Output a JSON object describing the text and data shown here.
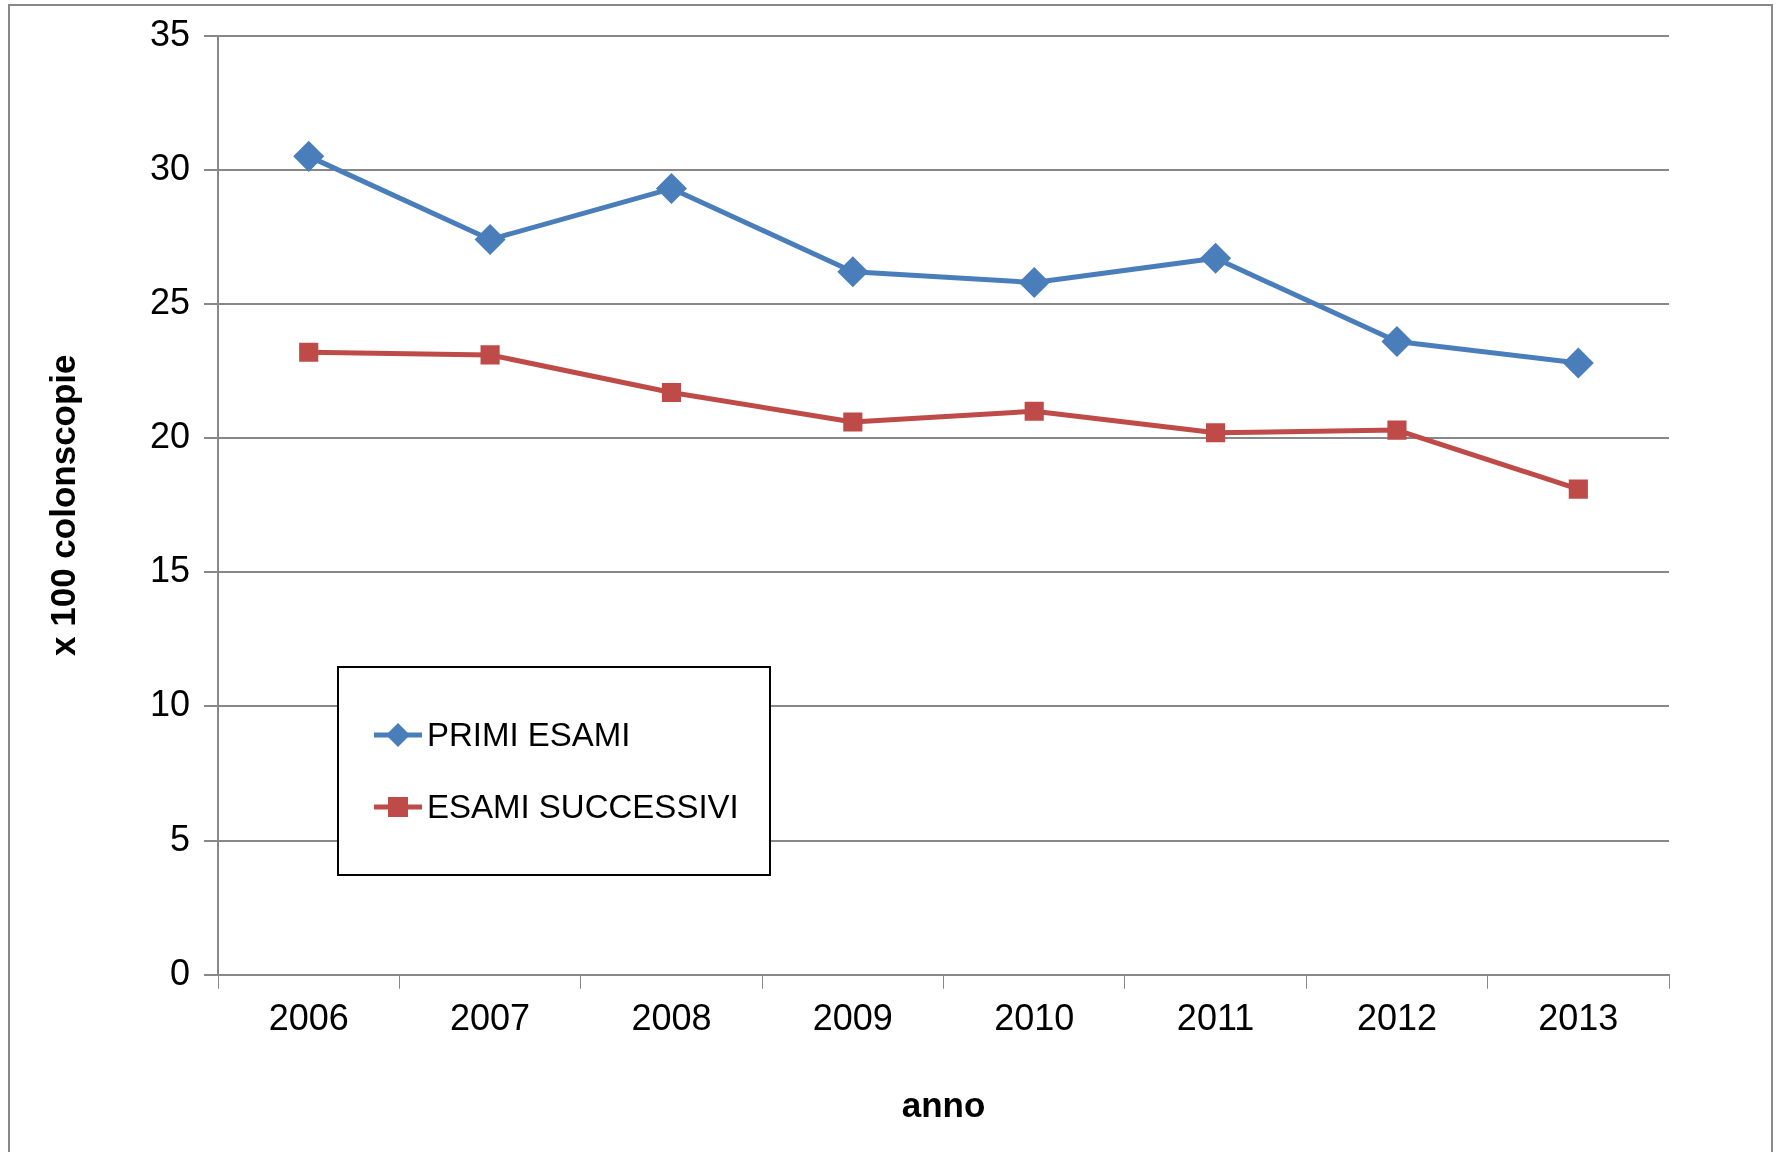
{
  "chart_data": {
    "type": "line",
    "xlabel": "anno",
    "ylabel": "x 100 colonscopie",
    "categories": [
      "2006",
      "2007",
      "2008",
      "2009",
      "2010",
      "2011",
      "2012",
      "2013"
    ],
    "series": [
      {
        "name": "PRIMI ESAMI",
        "color": "#4a7ebb",
        "marker": "diamond",
        "values": [
          30.5,
          27.4,
          29.3,
          26.2,
          25.8,
          26.7,
          23.6,
          22.8
        ]
      },
      {
        "name": "ESAMI SUCCESSIVI",
        "color": "#be4b48",
        "marker": "square",
        "values": [
          23.2,
          23.1,
          21.7,
          20.6,
          21.0,
          20.2,
          20.3,
          18.1
        ]
      }
    ],
    "ylim": [
      0,
      35
    ],
    "yticks": [
      0,
      5,
      10,
      15,
      20,
      25,
      30,
      35
    ],
    "grid": "y",
    "legend": "bottom left"
  }
}
